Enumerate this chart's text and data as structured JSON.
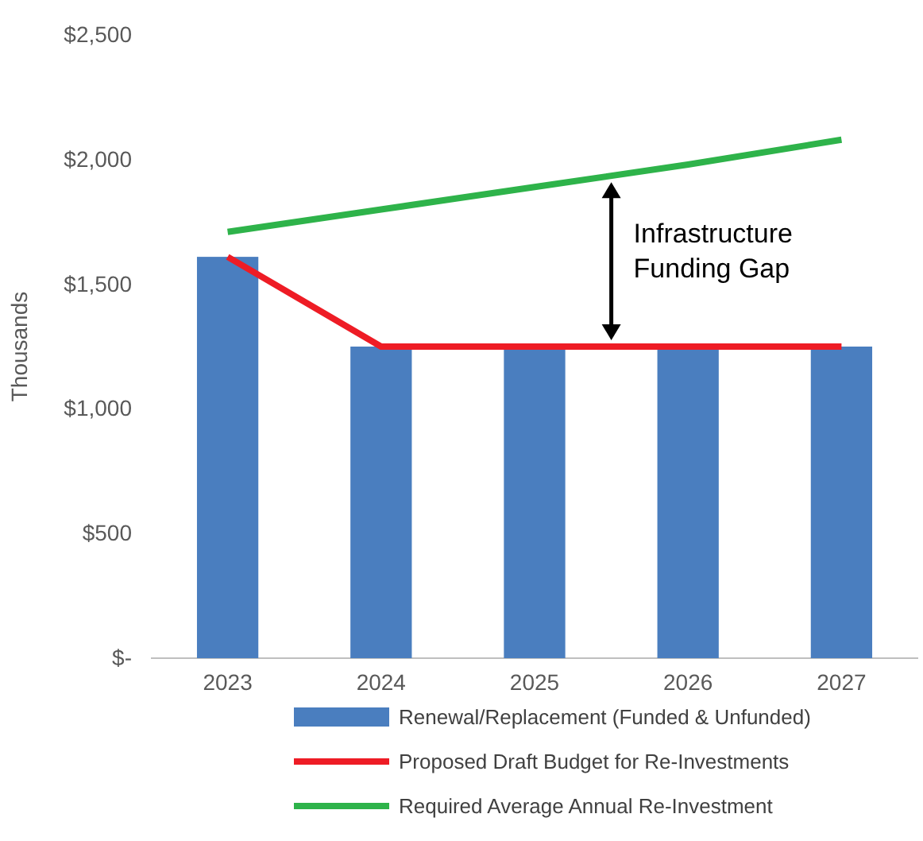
{
  "chart_data": {
    "type": "bar",
    "ylabel": "Thousands",
    "categories": [
      "2023",
      "2024",
      "2025",
      "2026",
      "2027"
    ],
    "series": [
      {
        "name": "Renewal/Replacement (Funded & Unfunded)",
        "color": "#4a7ebf",
        "values": [
          1610,
          1250,
          1250,
          1250,
          1250
        ]
      },
      {
        "name": "Proposed Draft Budget for Re-Investments",
        "type": "line",
        "color": "#ee1c25",
        "values": [
          1610,
          1250,
          1250,
          1250,
          1250
        ]
      },
      {
        "name": "Required Average Annual Re-Investment",
        "type": "line",
        "color": "#2eb34a",
        "values": [
          1710,
          1800,
          1890,
          1980,
          2080
        ]
      }
    ],
    "ylim": [
      0,
      2500
    ],
    "yticks": [
      {
        "value": 0,
        "label": "$-"
      },
      {
        "value": 500,
        "label": "$500"
      },
      {
        "value": 1000,
        "label": "$1,000"
      },
      {
        "value": 1500,
        "label": "$1,500"
      },
      {
        "value": 2000,
        "label": "$2,000"
      },
      {
        "value": 2500,
        "label": "$2,500"
      }
    ],
    "annotations": [
      "Infrastructure Funding Gap"
    ],
    "legend": "bottom",
    "grid": false
  }
}
